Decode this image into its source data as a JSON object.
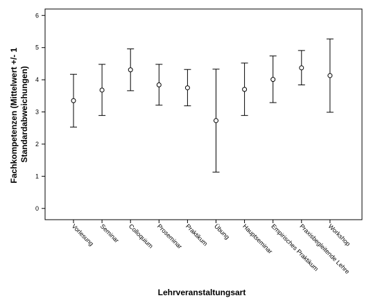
{
  "chart_data": {
    "type": "errorbar",
    "xlabel": "Lehrveranstaltungsart",
    "ylabel_lines": [
      "Fachkompetenzen (Mittelwert +/- 1",
      "Standardabweichungen)"
    ],
    "ylim": [
      -0.35,
      6.2
    ],
    "yticks": [
      "0",
      "1",
      "2",
      "3",
      "4",
      "5",
      "6"
    ],
    "grid": false,
    "categories": [
      "Vorlesung",
      "Seminar",
      "Colloquium",
      "Proseminar",
      "Praktikum",
      "Übung",
      "Hauptseminar",
      "Empirisches Praktikum",
      "Praxisbegleitende Lehre",
      "Workshop"
    ],
    "mean": [
      3.35,
      3.68,
      4.31,
      3.84,
      3.75,
      2.73,
      3.7,
      4.01,
      4.37,
      4.13
    ],
    "lower": [
      2.53,
      2.89,
      3.66,
      3.21,
      3.19,
      1.13,
      2.89,
      3.29,
      3.84,
      2.99
    ],
    "upper": [
      4.17,
      4.48,
      4.96,
      4.48,
      4.32,
      4.33,
      4.52,
      4.74,
      4.91,
      5.27
    ]
  }
}
